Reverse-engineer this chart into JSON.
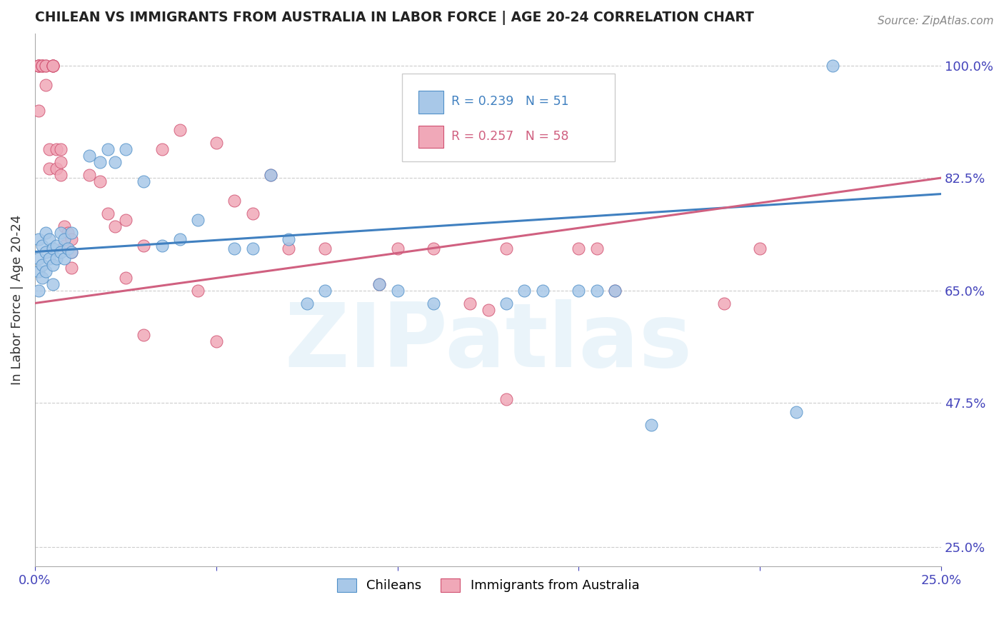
{
  "title": "CHILEAN VS IMMIGRANTS FROM AUSTRALIA IN LABOR FORCE | AGE 20-24 CORRELATION CHART",
  "source": "Source: ZipAtlas.com",
  "ylabel": "In Labor Force | Age 20-24",
  "watermark": "ZIPatlas",
  "xlim": [
    0.0,
    0.25
  ],
  "ylim": [
    0.22,
    1.05
  ],
  "yticks": [
    0.25,
    0.475,
    0.65,
    0.825,
    1.0
  ],
  "ytick_labels": [
    "25.0%",
    "47.5%",
    "65.0%",
    "82.5%",
    "100.0%"
  ],
  "xticks": [
    0.0,
    0.05,
    0.1,
    0.15,
    0.2,
    0.25
  ],
  "xtick_labels": [
    "0.0%",
    "",
    "",
    "",
    "",
    "25.0%"
  ],
  "blue_R": 0.239,
  "blue_N": 51,
  "pink_R": 0.257,
  "pink_N": 58,
  "blue_color": "#A8C8E8",
  "pink_color": "#F0A8B8",
  "blue_edge_color": "#5090C8",
  "pink_edge_color": "#D05070",
  "blue_line_color": "#4080C0",
  "pink_line_color": "#D06080",
  "legend_blue_label": "Chileans",
  "legend_pink_label": "Immigrants from Australia",
  "blue_line_x0": 0.0,
  "blue_line_y0": 0.71,
  "blue_line_x1": 0.25,
  "blue_line_y1": 0.8,
  "pink_line_x0": 0.0,
  "pink_line_y0": 0.63,
  "pink_line_x1": 0.25,
  "pink_line_y1": 0.825,
  "blue_x": [
    0.001,
    0.001,
    0.001,
    0.001,
    0.002,
    0.002,
    0.002,
    0.003,
    0.003,
    0.003,
    0.004,
    0.004,
    0.005,
    0.005,
    0.005,
    0.006,
    0.006,
    0.007,
    0.007,
    0.008,
    0.008,
    0.009,
    0.01,
    0.01,
    0.015,
    0.018,
    0.02,
    0.022,
    0.025,
    0.03,
    0.035,
    0.04,
    0.045,
    0.055,
    0.06,
    0.065,
    0.07,
    0.075,
    0.08,
    0.095,
    0.1,
    0.11,
    0.13,
    0.135,
    0.14,
    0.15,
    0.155,
    0.16,
    0.17,
    0.21,
    0.22
  ],
  "blue_y": [
    0.73,
    0.7,
    0.68,
    0.65,
    0.72,
    0.69,
    0.67,
    0.74,
    0.71,
    0.68,
    0.73,
    0.7,
    0.715,
    0.69,
    0.66,
    0.72,
    0.7,
    0.74,
    0.71,
    0.73,
    0.7,
    0.715,
    0.74,
    0.71,
    0.86,
    0.85,
    0.87,
    0.85,
    0.87,
    0.82,
    0.72,
    0.73,
    0.76,
    0.715,
    0.715,
    0.83,
    0.73,
    0.63,
    0.65,
    0.66,
    0.65,
    0.63,
    0.63,
    0.65,
    0.65,
    0.65,
    0.65,
    0.65,
    0.44,
    0.46,
    1.0
  ],
  "pink_x": [
    0.001,
    0.001,
    0.001,
    0.001,
    0.001,
    0.002,
    0.002,
    0.002,
    0.003,
    0.003,
    0.003,
    0.004,
    0.004,
    0.005,
    0.005,
    0.005,
    0.005,
    0.006,
    0.006,
    0.007,
    0.007,
    0.007,
    0.008,
    0.008,
    0.009,
    0.01,
    0.01,
    0.01,
    0.015,
    0.018,
    0.02,
    0.022,
    0.025,
    0.03,
    0.035,
    0.04,
    0.05,
    0.055,
    0.06,
    0.065,
    0.07,
    0.08,
    0.095,
    0.1,
    0.11,
    0.12,
    0.125,
    0.13,
    0.15,
    0.155,
    0.16,
    0.19,
    0.2,
    0.025,
    0.03,
    0.045,
    0.05,
    0.13
  ],
  "pink_y": [
    1.0,
    1.0,
    1.0,
    1.0,
    0.93,
    1.0,
    1.0,
    1.0,
    1.0,
    1.0,
    0.97,
    0.87,
    0.84,
    1.0,
    1.0,
    1.0,
    1.0,
    0.87,
    0.84,
    0.87,
    0.85,
    0.83,
    0.75,
    0.72,
    0.74,
    0.73,
    0.71,
    0.685,
    0.83,
    0.82,
    0.77,
    0.75,
    0.76,
    0.72,
    0.87,
    0.9,
    0.88,
    0.79,
    0.77,
    0.83,
    0.715,
    0.715,
    0.66,
    0.715,
    0.715,
    0.63,
    0.62,
    0.715,
    0.715,
    0.715,
    0.65,
    0.63,
    0.715,
    0.67,
    0.58,
    0.65,
    0.57,
    0.48
  ]
}
